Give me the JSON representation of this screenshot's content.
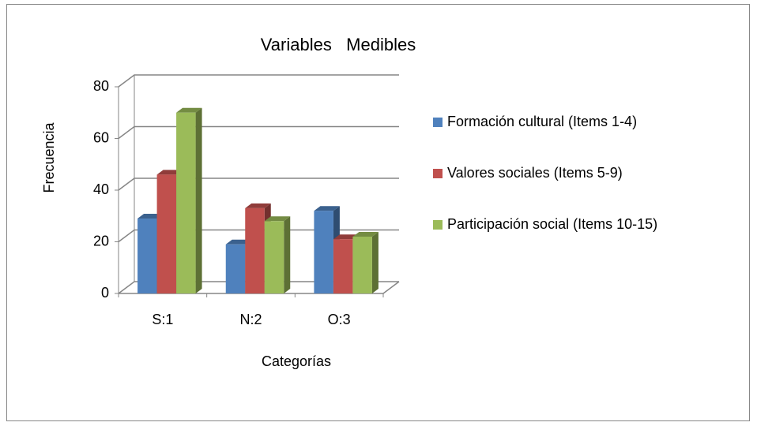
{
  "chart_data": {
    "type": "bar3d",
    "title": "Variables   Medibles",
    "x_label": "Categorías",
    "y_label": "Frecuencia",
    "categories": [
      "S:1",
      "N:2",
      "O:3"
    ],
    "series": [
      {
        "name": "Formación cultural (Items 1-4)",
        "color": "#4f81bd",
        "values": [
          29,
          19,
          32
        ]
      },
      {
        "name": "Valores sociales (Items 5-9)",
        "color": "#c0504d",
        "values": [
          46,
          33,
          21
        ]
      },
      {
        "name": "Participación social (Items 10-15)",
        "color": "#9bbb59",
        "values": [
          70,
          28,
          22
        ]
      }
    ],
    "ylim": [
      0,
      80
    ],
    "yticks": [
      0,
      20,
      40,
      60,
      80
    ],
    "grid": true,
    "legend": "right"
  }
}
